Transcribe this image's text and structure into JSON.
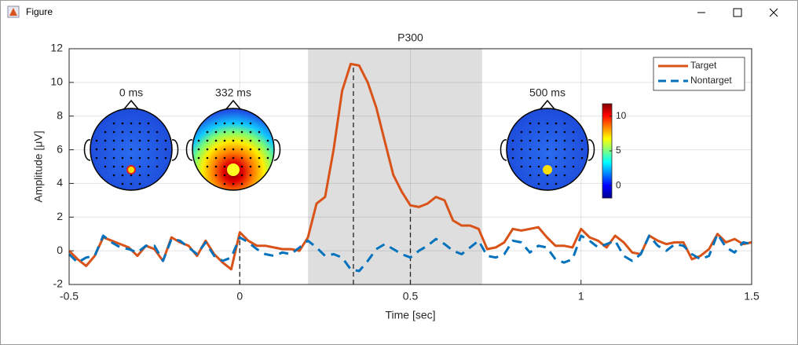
{
  "window": {
    "title": "Figure"
  },
  "chart_data": {
    "type": "line",
    "title": "P300",
    "xlabel": "Time [sec]",
    "ylabel": "Amplitude [μV]",
    "x": [
      -0.5,
      -0.475,
      -0.45,
      -0.425,
      -0.4,
      -0.375,
      -0.35,
      -0.325,
      -0.3,
      -0.275,
      -0.25,
      -0.225,
      -0.2,
      -0.175,
      -0.15,
      -0.125,
      -0.1,
      -0.075,
      -0.05,
      -0.025,
      0,
      0.025,
      0.05,
      0.075,
      0.1,
      0.125,
      0.15,
      0.175,
      0.2,
      0.225,
      0.25,
      0.275,
      0.3,
      0.325,
      0.35,
      0.375,
      0.4,
      0.425,
      0.45,
      0.475,
      0.5,
      0.525,
      0.55,
      0.575,
      0.6,
      0.625,
      0.65,
      0.675,
      0.7,
      0.725,
      0.75,
      0.775,
      0.8,
      0.825,
      0.85,
      0.875,
      0.9,
      0.925,
      0.95,
      0.975,
      1,
      1.025,
      1.05,
      1.075,
      1.1,
      1.125,
      1.15,
      1.175,
      1.2,
      1.225,
      1.25,
      1.275,
      1.3,
      1.325,
      1.35,
      1.375,
      1.4,
      1.425,
      1.45,
      1.475,
      1.5
    ],
    "series": [
      {
        "name": "Target",
        "color": "#d95319",
        "style": "solid",
        "values": [
          0,
          -0.5,
          -0.9,
          -0.3,
          0.8,
          0.6,
          0.4,
          0.2,
          -0.3,
          0.3,
          0.1,
          -0.6,
          0.8,
          0.5,
          0.3,
          -0.3,
          0.6,
          -0.2,
          -0.7,
          -1.1,
          1.1,
          0.6,
          0.3,
          0.3,
          0.2,
          0.1,
          0.1,
          0.0,
          0.8,
          2.8,
          3.2,
          6.0,
          9.5,
          11.1,
          11.0,
          10.0,
          8.5,
          6.5,
          4.5,
          3.5,
          2.7,
          2.6,
          2.8,
          3.2,
          3.0,
          1.8,
          1.5,
          1.5,
          1.3,
          0.1,
          0.2,
          0.5,
          1.3,
          1.2,
          1.3,
          1.4,
          0.8,
          0.3,
          0.3,
          0.2,
          1.3,
          0.8,
          0.6,
          0.2,
          0.9,
          0.5,
          -0.1,
          -0.2,
          0.9,
          0.6,
          0.4,
          0.5,
          0.5,
          -0.5,
          -0.3,
          0.1,
          1.0,
          0.5,
          0.7,
          0.4,
          0.5
        ]
      },
      {
        "name": "Nontarget",
        "color": "#0072bd",
        "style": "dashed",
        "values": [
          -0.2,
          -0.7,
          -0.4,
          -0.3,
          0.9,
          0.5,
          0.2,
          0.1,
          -0.1,
          0.3,
          0.3,
          -0.6,
          0.7,
          0.6,
          0.2,
          -0.2,
          0.5,
          -0.3,
          -0.6,
          -0.4,
          0.8,
          0.5,
          0.1,
          -0.2,
          -0.3,
          -0.1,
          -0.2,
          0.2,
          0.6,
          0.2,
          -0.3,
          -0.2,
          -0.4,
          -1.1,
          -1.2,
          -0.6,
          0.1,
          0.4,
          0.1,
          -0.2,
          -0.4,
          0.0,
          0.3,
          0.7,
          0.4,
          0.0,
          -0.2,
          0.2,
          0.6,
          -0.3,
          -0.4,
          -0.2,
          0.6,
          0.5,
          -0.1,
          0.3,
          0.2,
          -0.5,
          -0.7,
          -0.5,
          0.9,
          0.6,
          0.2,
          0.4,
          0.6,
          -0.3,
          -0.6,
          -0.2,
          0.9,
          0.3,
          0.0,
          0.4,
          0.3,
          -0.2,
          -0.5,
          -0.3,
          1.0,
          0.2,
          -0.1,
          0.5,
          0.4
        ]
      }
    ],
    "xlim": [
      -0.5,
      1.5
    ],
    "ylim": [
      -2,
      12
    ],
    "xticks": [
      -0.5,
      0,
      0.5,
      1,
      1.5
    ],
    "yticks": [
      -2,
      0,
      2,
      4,
      6,
      8,
      10,
      12
    ],
    "grid": true,
    "legend": "upper right",
    "highlight": [
      0.2,
      0.71
    ],
    "markers": [
      0,
      0.333,
      0.5
    ],
    "topomaps": [
      {
        "label": "0 ms"
      },
      {
        "label": "332 ms"
      },
      {
        "label": "500 ms"
      }
    ],
    "colorbar": {
      "lim": [
        -1.8,
        11.8
      ],
      "ticks": [
        0,
        5,
        10
      ]
    }
  }
}
